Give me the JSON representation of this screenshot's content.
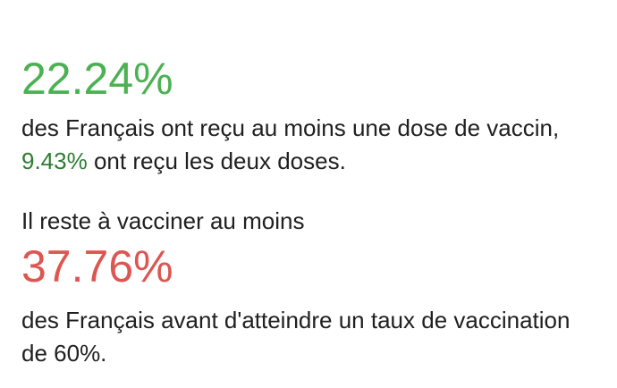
{
  "colors": {
    "big_green": "#4cb152",
    "inline_green": "#2e7d32",
    "big_red": "#dd5651",
    "body_text": "#202020",
    "background": "#ffffff"
  },
  "stats": {
    "first_dose_percent": "22.24%",
    "second_dose_percent": "9.43%",
    "remaining_percent": "37.76%"
  },
  "text": {
    "first_dose_line": "des Français ont reçu au moins une dose de vaccin,",
    "second_dose_rest": " ont reçu les deux doses.",
    "remaining_intro": "Il reste à vacciner au moins",
    "remaining_line1": "des Français avant d'atteindre un taux de vaccination",
    "remaining_line2": "de 60%."
  }
}
